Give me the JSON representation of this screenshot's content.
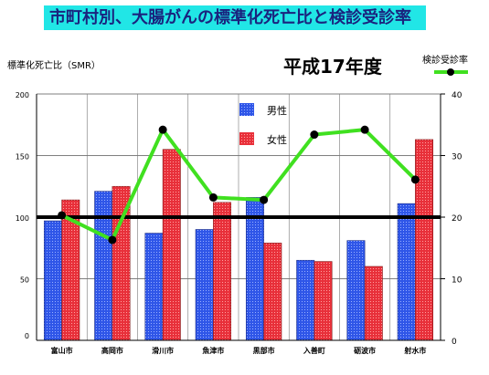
{
  "title": "市町村別、大腸がんの標準化死亡比と検診受診率",
  "chart_data": {
    "type": "bar",
    "subtitle": "平成17年度",
    "ylabel_left": "標準化死亡比（SMR）",
    "ylabel_right": "検診受診率",
    "categories": [
      "富山市",
      "高岡市",
      "滑川市",
      "魚津市",
      "黒部市",
      "入善町",
      "砺波市",
      "射水市"
    ],
    "series": [
      {
        "name": "男性",
        "type": "bar",
        "axis": "left",
        "values": [
          97,
          121,
          87,
          90,
          116,
          65,
          81,
          111
        ]
      },
      {
        "name": "女性",
        "type": "bar",
        "axis": "left",
        "values": [
          114,
          125,
          155,
          112,
          79,
          64,
          60,
          163
        ]
      },
      {
        "name": "検診受診率",
        "type": "line",
        "axis": "right",
        "values": [
          20.3,
          16.3,
          34.2,
          23.2,
          22.8,
          33.4,
          34.2,
          26.1
        ]
      }
    ],
    "reference_line": 100,
    "ylim_left": [
      0,
      200
    ],
    "yticks_left": [
      "0",
      "50",
      "100",
      "150",
      "200"
    ],
    "ylim_right": [
      0,
      40
    ],
    "yticks_right": [
      "0",
      "10",
      "20",
      "30",
      "40"
    ],
    "grid": true,
    "colors": {
      "male": "#2f56e8",
      "female": "#e8303a",
      "rate": "#40e020",
      "reference": "#000000"
    }
  }
}
